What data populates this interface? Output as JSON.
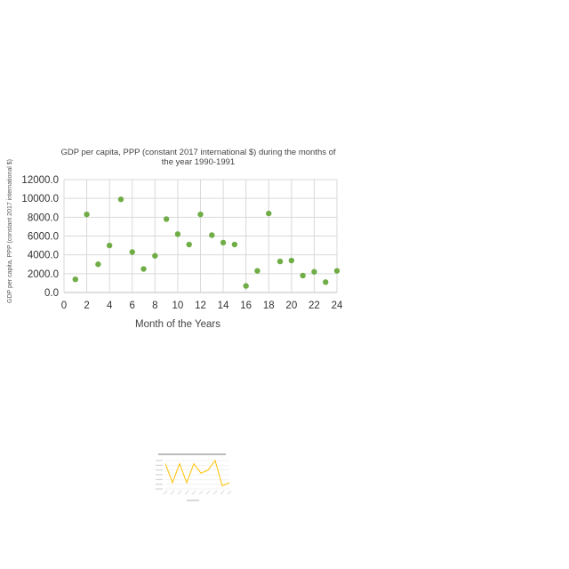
{
  "chart_data": [
    {
      "type": "scatter",
      "title_lines": [
        "GDP per capita, PPP (constant 2017 international $) during the months of",
        "the year 1990-1991"
      ],
      "xlabel": "Month of the Years",
      "ylabel": "GDP per capita, PPP (constant 2017 international $)",
      "xlim": [
        0,
        24
      ],
      "ylim": [
        0,
        12000
      ],
      "x_ticks": [
        0,
        2,
        4,
        6,
        8,
        10,
        12,
        14,
        16,
        18,
        20,
        22,
        24
      ],
      "y_ticks": [
        0,
        2000,
        4000,
        6000,
        8000,
        10000,
        12000
      ],
      "y_tick_labels": [
        "0.0",
        "2000.0",
        "4000.0",
        "6000.0",
        "8000.0",
        "10000.0",
        "12000.0"
      ],
      "grid": true,
      "marker_color": "#70ad47",
      "points": [
        {
          "x": 1,
          "y": 1400
        },
        {
          "x": 2,
          "y": 8300
        },
        {
          "x": 3,
          "y": 3000
        },
        {
          "x": 4,
          "y": 5000
        },
        {
          "x": 5,
          "y": 9900
        },
        {
          "x": 6,
          "y": 4300
        },
        {
          "x": 7,
          "y": 2500
        },
        {
          "x": 8,
          "y": 3900
        },
        {
          "x": 9,
          "y": 7800
        },
        {
          "x": 10,
          "y": 6200
        },
        {
          "x": 11,
          "y": 5100
        },
        {
          "x": 12,
          "y": 8300
        },
        {
          "x": 13,
          "y": 6100
        },
        {
          "x": 14,
          "y": 5300
        },
        {
          "x": 15,
          "y": 5100
        },
        {
          "x": 16,
          "y": 700
        },
        {
          "x": 17,
          "y": 2300
        },
        {
          "x": 18,
          "y": 8400
        },
        {
          "x": 19,
          "y": 3300
        },
        {
          "x": 20,
          "y": 3400
        },
        {
          "x": 21,
          "y": 1800
        },
        {
          "x": 22,
          "y": 2200
        },
        {
          "x": 23,
          "y": 1100
        },
        {
          "x": 24,
          "y": 2300
        }
      ]
    },
    {
      "type": "line",
      "line_color": "#ffc000",
      "grid": true,
      "values": [
        8,
        2,
        8,
        2,
        8,
        5,
        6,
        9,
        1,
        2
      ]
    }
  ]
}
